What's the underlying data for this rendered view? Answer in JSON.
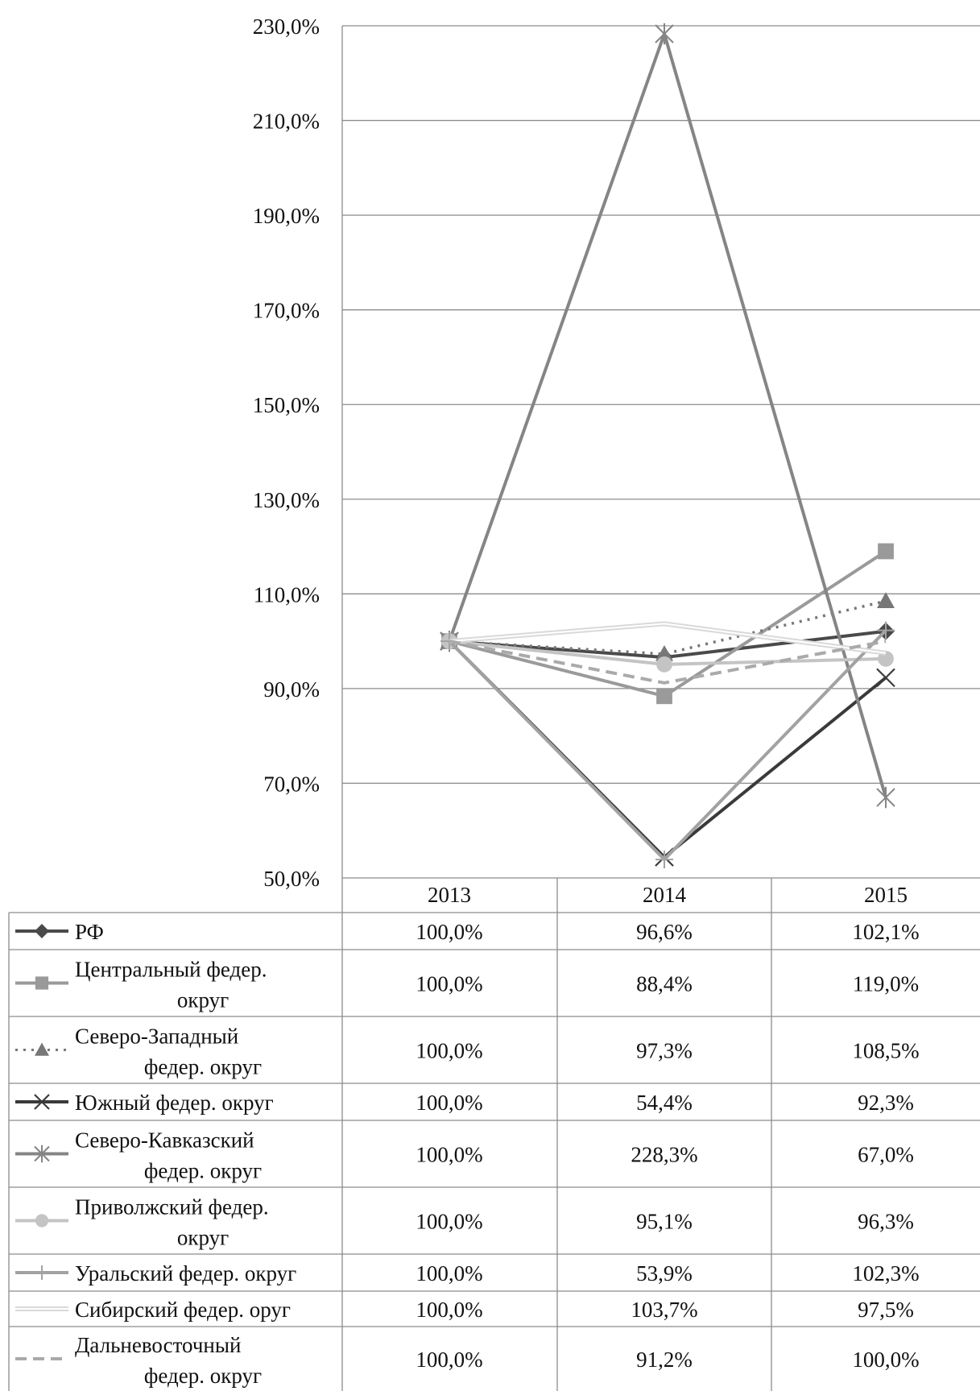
{
  "chart_data": {
    "type": "line",
    "categories": [
      "2013",
      "2014",
      "2015"
    ],
    "ylim": [
      50,
      230
    ],
    "y_ticks": [
      "230,0%",
      "210,0%",
      "190,0%",
      "170,0%",
      "150,0%",
      "130,0%",
      "110,0%",
      "90,0%",
      "70,0%",
      "50,0%"
    ],
    "y_tick_values": [
      230,
      210,
      190,
      170,
      150,
      130,
      110,
      90,
      70,
      50
    ],
    "grid": true,
    "legend_placement": "data table below chart",
    "series": [
      {
        "name": "РФ",
        "name_lines": [
          "РФ"
        ],
        "values": [
          100.0,
          96.6,
          102.1
        ],
        "labels": [
          "100,0%",
          "96,6%",
          "102,1%"
        ],
        "color": "#4a4a4a",
        "dash": "solid",
        "marker": "diamond"
      },
      {
        "name": "Центральный федер. округ",
        "name_lines": [
          "Центральный федер.",
          "округ"
        ],
        "values": [
          100.0,
          88.4,
          119.0
        ],
        "labels": [
          "100,0%",
          "88,4%",
          "119,0%"
        ],
        "color": "#9a9a9a",
        "dash": "solid",
        "marker": "square"
      },
      {
        "name": "Северо-Западный федер. округ",
        "name_lines": [
          "Северо-Западный",
          "федер. округ"
        ],
        "values": [
          100.0,
          97.3,
          108.5
        ],
        "labels": [
          "100,0%",
          "97,3%",
          "108,5%"
        ],
        "color": "#777777",
        "dash": "dot",
        "marker": "triangle"
      },
      {
        "name": "Южный федер. округ",
        "name_lines": [
          "Южный федер. округ"
        ],
        "values": [
          100.0,
          54.4,
          92.3
        ],
        "labels": [
          "100,0%",
          "54,4%",
          "92,3%"
        ],
        "color": "#3a3a3a",
        "dash": "solid",
        "marker": "x"
      },
      {
        "name": "Северо-Кавказский федер. округ",
        "name_lines": [
          "Северо-Кавказский",
          "федер. округ"
        ],
        "values": [
          100.0,
          228.3,
          67.0
        ],
        "labels": [
          "100,0%",
          "228,3%",
          "67,0%"
        ],
        "color": "#858585",
        "dash": "solid",
        "marker": "star"
      },
      {
        "name": "Приволжский федер. округ",
        "name_lines": [
          "Приволжский федер.",
          "округ"
        ],
        "values": [
          100.0,
          95.1,
          96.3
        ],
        "labels": [
          "100,0%",
          "95,1%",
          "96,3%"
        ],
        "color": "#c4c4c4",
        "dash": "solid",
        "marker": "circle"
      },
      {
        "name": "Уральский федер. округ",
        "name_lines": [
          "Уральский федер. округ"
        ],
        "values": [
          100.0,
          53.9,
          102.3
        ],
        "labels": [
          "100,0%",
          "53,9%",
          "102,3%"
        ],
        "color": "#a2a2a2",
        "dash": "solid",
        "marker": "plus"
      },
      {
        "name": "Сибирский федер. оруг",
        "name_lines": [
          "Сибирский федер. оруг"
        ],
        "values": [
          100.0,
          103.7,
          97.5
        ],
        "labels": [
          "100,0%",
          "103,7%",
          "97,5%"
        ],
        "color": "#d9d9d9",
        "dash": "double",
        "marker": "none"
      },
      {
        "name": "Дальневосточный федер. округ",
        "name_lines": [
          "Дальневосточный",
          "федер. округ"
        ],
        "values": [
          100.0,
          91.2,
          100.0
        ],
        "labels": [
          "100,0%",
          "91,2%",
          "100,0%"
        ],
        "color": "#aaaaaa",
        "dash": "dash",
        "marker": "none"
      }
    ]
  }
}
